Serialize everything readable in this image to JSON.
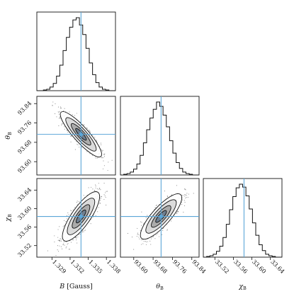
{
  "chart_data": {
    "type": "corner",
    "parameters": [
      {
        "key": "B",
        "label": "B [Gauss]",
        "range": [
          1.3265,
          1.3395
        ],
        "ticks": [
          "1.329",
          "1.332",
          "1.335",
          "1.338"
        ],
        "truth": 1.3338,
        "histogram": [
          0,
          0,
          1,
          2,
          5,
          10,
          20,
          35,
          55,
          73,
          87,
          97,
          100,
          90,
          77,
          58,
          38,
          22,
          11,
          5,
          2,
          1,
          0,
          0
        ]
      },
      {
        "key": "theta_B",
        "label": "θ_B",
        "range": [
          93.545,
          93.87
        ],
        "ticks": [
          "93.60",
          "93.68",
          "93.76",
          "93.84"
        ],
        "truth": 93.713,
        "histogram": [
          0,
          1,
          2,
          4,
          8,
          15,
          27,
          44,
          62,
          78,
          90,
          100,
          94,
          82,
          66,
          47,
          30,
          17,
          9,
          4,
          2,
          1,
          0,
          0
        ]
      },
      {
        "key": "chi_B",
        "label": "χ_B",
        "range": [
          33.495,
          33.665
        ],
        "ticks": [
          "33.52",
          "33.56",
          "33.60",
          "33.64"
        ],
        "truth": 33.583,
        "histogram": [
          0,
          1,
          2,
          4,
          8,
          15,
          27,
          45,
          65,
          83,
          95,
          100,
          96,
          84,
          66,
          47,
          30,
          17,
          9,
          4,
          2,
          1,
          0,
          0
        ]
      }
    ],
    "pair_panels": [
      {
        "x": "B",
        "y": "theta_B",
        "correlation": "negative"
      },
      {
        "x": "B",
        "y": "chi_B",
        "correlation": "positive"
      },
      {
        "x": "theta_B",
        "y": "chi_B",
        "correlation": "positive"
      }
    ],
    "truth_color": "#5ba6d8"
  }
}
